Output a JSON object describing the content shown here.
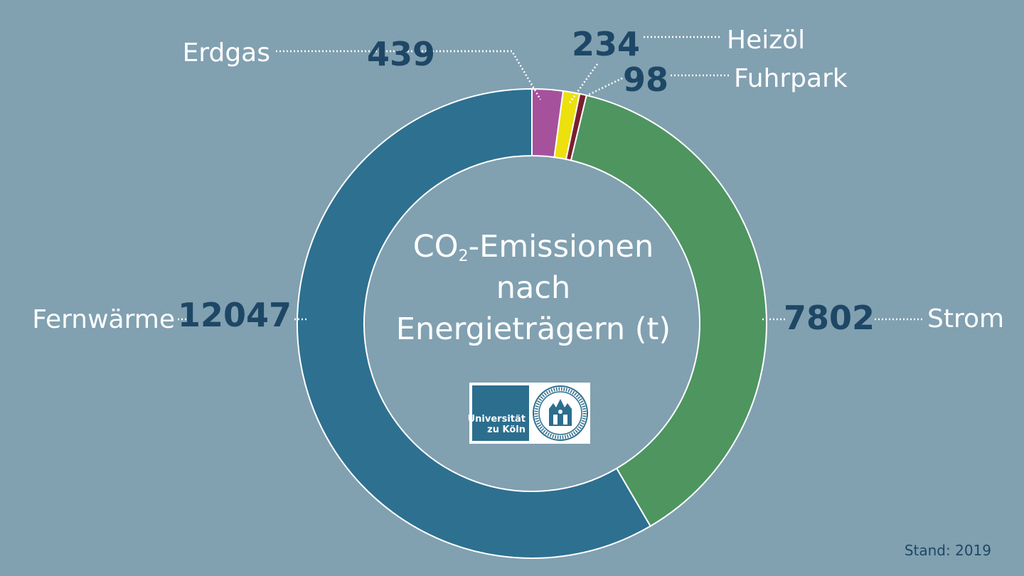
{
  "chart_data": {
    "type": "pie",
    "style": "donut",
    "title_prefix": "CO",
    "title_sub": "2",
    "title_line1_rest": "-Emissionen",
    "title_line2": "nach",
    "title_line3": "Energieträgern (t)",
    "slices": [
      {
        "label": "Erdgas",
        "value": 439,
        "color": "#a6519c"
      },
      {
        "label": "Heizöl",
        "value": 234,
        "color": "#ece10c"
      },
      {
        "label": "Fuhrpark",
        "value": 98,
        "color": "#7a1f2f"
      },
      {
        "label": "Strom",
        "value": 7802,
        "color": "#4e9560"
      },
      {
        "label": "Fernwärme",
        "value": 12047,
        "color": "#2e7090"
      }
    ],
    "legend": "none"
  },
  "logo": {
    "line1": "Universität",
    "line2": "zu Köln",
    "icon": "university-seal-icon"
  },
  "footer": {
    "stand": "Stand: 2019"
  },
  "colors": {
    "background": "#7e9fb0",
    "value_text": "#1e4766",
    "label_text": "#ffffff"
  }
}
